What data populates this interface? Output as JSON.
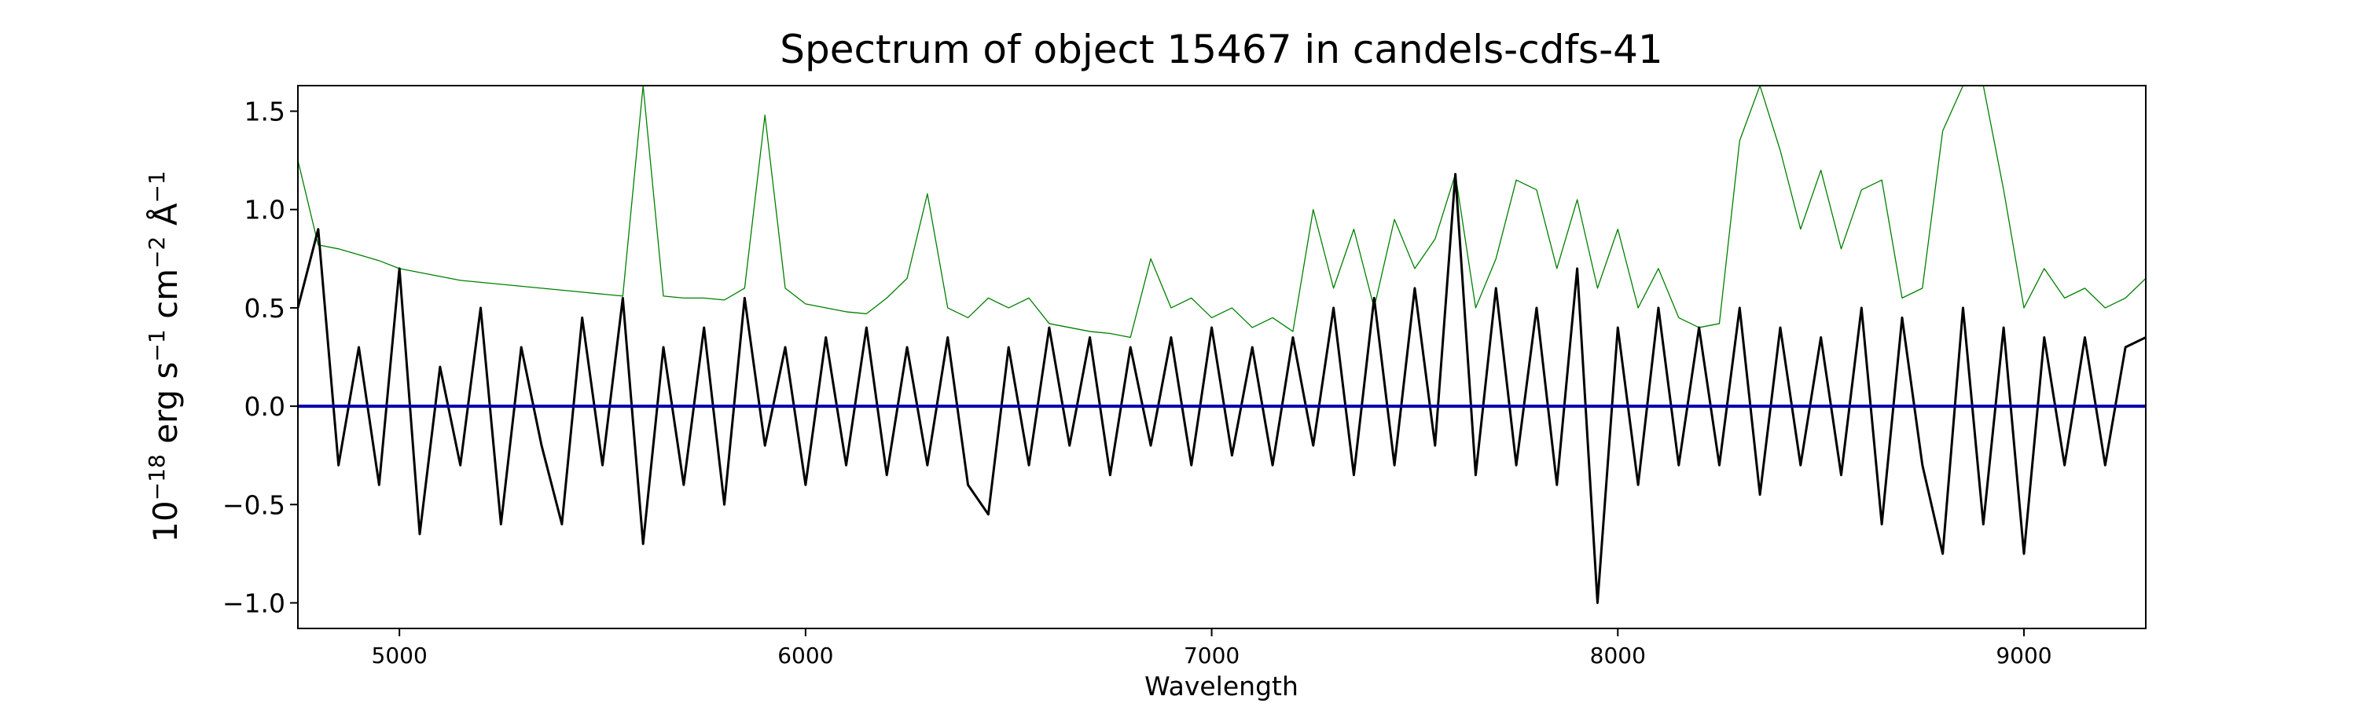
{
  "chart_data": {
    "type": "line",
    "title": "Spectrum of object 15467 in candels-cdfs-41",
    "xlabel": "Wavelength",
    "ylabel_parts": [
      "10",
      "−18",
      " erg s",
      "−1",
      " cm",
      "−2",
      " Å",
      "−1"
    ],
    "xlim": [
      4750,
      9300
    ],
    "ylim": [
      -1.13,
      1.63
    ],
    "xticks": [
      5000,
      6000,
      7000,
      8000,
      9000
    ],
    "yticks": [
      {
        "value": -1.0,
        "label": "−1.0"
      },
      {
        "value": -0.5,
        "label": "−0.5"
      },
      {
        "value": 0.0,
        "label": "0.0"
      },
      {
        "value": 0.5,
        "label": "0.5"
      },
      {
        "value": 1.0,
        "label": "1.0"
      },
      {
        "value": 1.5,
        "label": "1.5"
      }
    ],
    "x": [
      4750,
      4800,
      4850,
      4900,
      4950,
      5000,
      5050,
      5100,
      5150,
      5200,
      5250,
      5300,
      5350,
      5400,
      5450,
      5500,
      5550,
      5600,
      5650,
      5700,
      5750,
      5800,
      5850,
      5900,
      5950,
      6000,
      6050,
      6100,
      6150,
      6200,
      6250,
      6300,
      6350,
      6400,
      6450,
      6500,
      6550,
      6600,
      6650,
      6700,
      6750,
      6800,
      6850,
      6900,
      6950,
      7000,
      7050,
      7100,
      7150,
      7200,
      7250,
      7300,
      7350,
      7400,
      7450,
      7500,
      7550,
      7600,
      7650,
      7700,
      7750,
      7800,
      7850,
      7900,
      7950,
      8000,
      8050,
      8100,
      8150,
      8200,
      8250,
      8300,
      8350,
      8400,
      8450,
      8500,
      8550,
      8600,
      8650,
      8700,
      8750,
      8800,
      8850,
      8900,
      8950,
      9000,
      9050,
      9100,
      9150,
      9200,
      9250,
      9300
    ],
    "series": [
      {
        "color": "#008000",
        "width": 1.3,
        "values": [
          1.25,
          0.82,
          0.8,
          0.77,
          0.74,
          0.7,
          0.68,
          0.66,
          0.64,
          0.63,
          0.62,
          0.61,
          0.6,
          0.59,
          0.58,
          0.57,
          0.56,
          1.63,
          0.56,
          0.55,
          0.55,
          0.54,
          0.6,
          1.48,
          0.6,
          0.52,
          0.5,
          0.48,
          0.47,
          0.55,
          0.65,
          1.08,
          0.5,
          0.45,
          0.55,
          0.5,
          0.55,
          0.42,
          0.4,
          0.38,
          0.37,
          0.35,
          0.75,
          0.5,
          0.55,
          0.45,
          0.5,
          0.4,
          0.45,
          0.38,
          1.0,
          0.6,
          0.9,
          0.5,
          0.95,
          0.7,
          0.85,
          1.18,
          0.5,
          0.75,
          1.15,
          1.1,
          0.7,
          1.05,
          0.6,
          0.9,
          0.5,
          0.7,
          0.45,
          0.4,
          0.42,
          1.35,
          1.63,
          1.3,
          0.9,
          1.2,
          0.8,
          1.1,
          1.15,
          0.55,
          0.6,
          1.4,
          1.63,
          1.63,
          1.1,
          0.5,
          0.7,
          0.55,
          0.6,
          0.5,
          0.55,
          0.65
        ]
      },
      {
        "color": "#000000",
        "width": 3,
        "values": [
          0.5,
          0.9,
          -0.3,
          0.3,
          -0.4,
          0.7,
          -0.65,
          0.2,
          -0.3,
          0.5,
          -0.6,
          0.3,
          -0.2,
          -0.6,
          0.45,
          -0.3,
          0.55,
          -0.7,
          0.3,
          -0.4,
          0.4,
          -0.5,
          0.55,
          -0.2,
          0.3,
          -0.4,
          0.35,
          -0.3,
          0.4,
          -0.35,
          0.3,
          -0.3,
          0.35,
          -0.4,
          -0.55,
          0.3,
          -0.3,
          0.4,
          -0.2,
          0.35,
          -0.35,
          0.3,
          -0.2,
          0.35,
          -0.3,
          0.4,
          -0.25,
          0.3,
          -0.3,
          0.35,
          -0.2,
          0.5,
          -0.35,
          0.55,
          -0.3,
          0.6,
          -0.2,
          1.18,
          -0.35,
          0.6,
          -0.3,
          0.5,
          -0.4,
          0.7,
          -1.0,
          0.4,
          -0.4,
          0.5,
          -0.3,
          0.4,
          -0.3,
          0.5,
          -0.45,
          0.4,
          -0.3,
          0.35,
          -0.35,
          0.5,
          -0.6,
          0.45,
          -0.3,
          -0.75,
          0.5,
          -0.6,
          0.4,
          -0.75,
          0.35,
          -0.3,
          0.35,
          -0.3,
          0.3,
          0.35
        ]
      },
      {
        "color": "#0000aa",
        "width": 4,
        "x": [
          4750,
          9300
        ],
        "values": [
          0,
          0
        ]
      }
    ]
  }
}
